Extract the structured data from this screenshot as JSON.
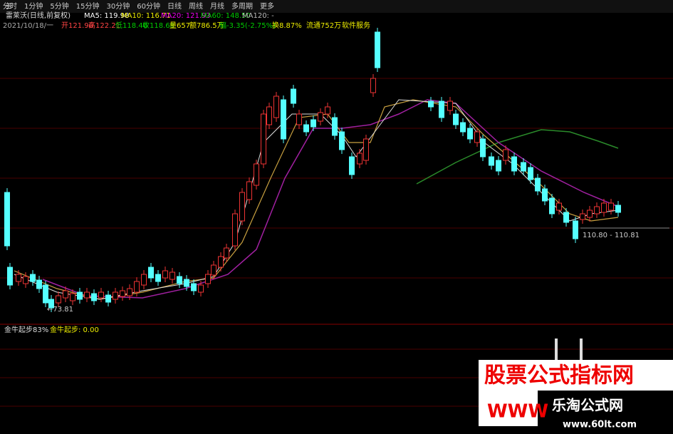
{
  "toolbar": {
    "items": [
      "分时",
      "1分钟",
      "5分钟",
      "15分钟",
      "30分钟",
      "60分钟",
      "日线",
      "周线",
      "月线",
      "多周期",
      "更多"
    ]
  },
  "header": {
    "title": "雷莱沃(日线,前复权)",
    "ma": [
      "MA5: 119.98",
      "MA10: 116.71",
      "MA20: 121.93",
      "MA60: 148.50",
      "MA120: -"
    ]
  },
  "quote": [
    "2021/10/18/一",
    "开121.90",
    "高122.21",
    "低118.40",
    "收118.68",
    "量657",
    "额786.5万",
    "幅-3.35(-2.75%)",
    "换8.87%",
    "流通752万",
    "软件服务"
  ],
  "annotations": {
    "low": "110.80 - 110.81",
    "min": "←73.81"
  },
  "indicator": {
    "title": "金牛起步83%",
    "value": "金牛起步: 0.00"
  },
  "watermark": {
    "banner": "股票公式指标网",
    "www": "WWW",
    "site": "乐淘公式网",
    "url": "www.60lt.com"
  }
}
